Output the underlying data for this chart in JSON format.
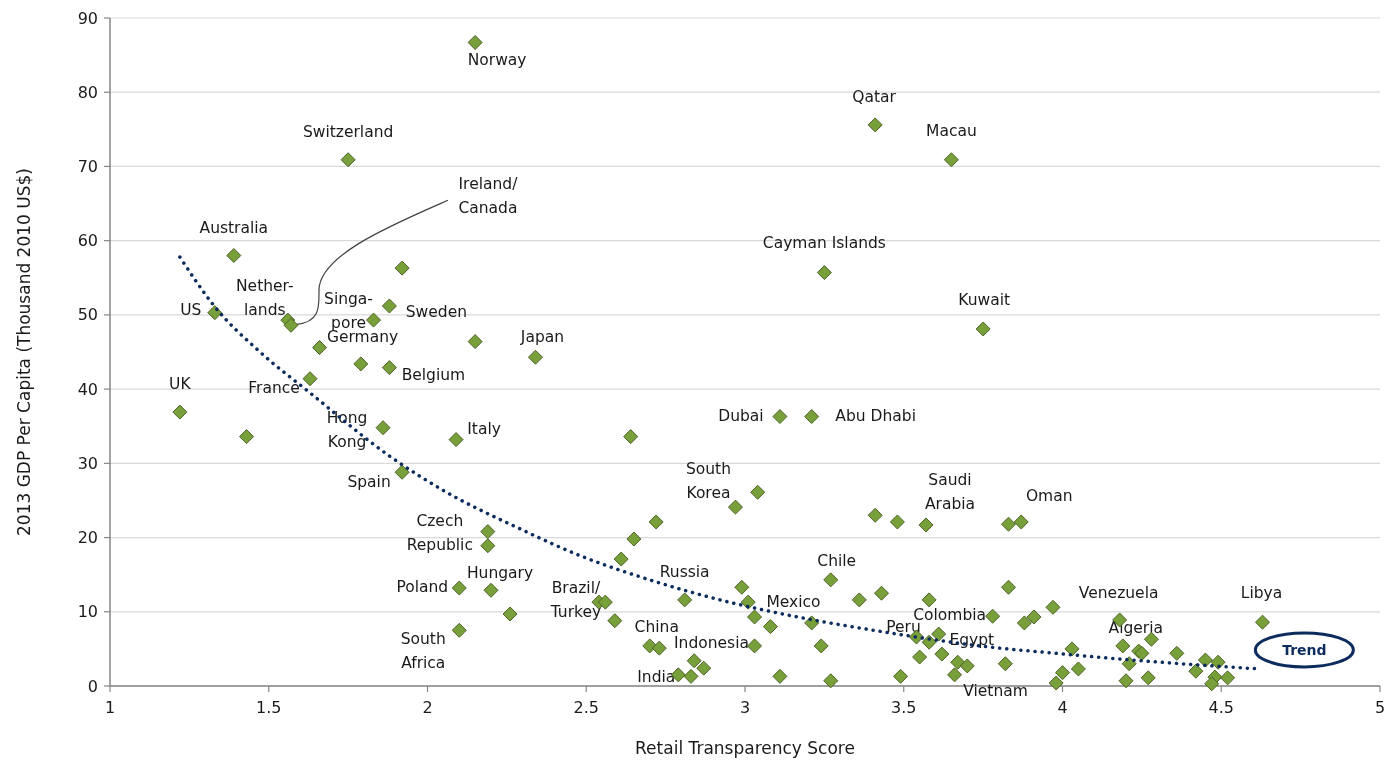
{
  "chart_data": {
    "type": "scatter",
    "xlabel": "Retail Transparency Score",
    "ylabel": "2013 GDP Per Capita (Thousand 2010 US$)",
    "xlim": [
      1,
      5
    ],
    "xticks": [
      1,
      1.5,
      2,
      2.5,
      3,
      3.5,
      4,
      4.5,
      5
    ],
    "ylim": [
      0,
      90
    ],
    "yticks": [
      0,
      10,
      20,
      30,
      40,
      50,
      60,
      70,
      80,
      90
    ],
    "grid": "y",
    "legend": false,
    "series": [
      {
        "color": "#77a03a",
        "marker": "diamond",
        "x": [
          1.22,
          1.43,
          1.33,
          1.39,
          1.56,
          1.57,
          1.63,
          1.66,
          1.75,
          1.79,
          1.83,
          1.88,
          1.92,
          1.88,
          1.86,
          1.92,
          2.09,
          2.15,
          2.15,
          2.34,
          2.19,
          2.19,
          2.1,
          2.2,
          2.26,
          2.1,
          2.54,
          2.56,
          2.59,
          2.61,
          2.65,
          2.72,
          2.64,
          2.7,
          2.73,
          2.81,
          2.79,
          2.83,
          2.84,
          2.87,
          2.97,
          3.04,
          2.99,
          3.01,
          3.03,
          3.08,
          3.03,
          3.11,
          3.21,
          3.11,
          3.27,
          3.21,
          3.24,
          3.27,
          3.36,
          3.43,
          3.41,
          3.48,
          3.57,
          3.49,
          3.58,
          3.54,
          3.55,
          3.58,
          3.61,
          3.62,
          3.67,
          3.7,
          3.66,
          3.83,
          3.87,
          3.83,
          3.78,
          3.82,
          3.88,
          3.91,
          3.97,
          3.98,
          4.0,
          3.75,
          3.41,
          3.65,
          3.25,
          4.63,
          4.18,
          4.19,
          4.28,
          4.24,
          4.25,
          4.21,
          4.2,
          4.27,
          4.03,
          4.05,
          4.36,
          4.42,
          4.45,
          4.49,
          4.48,
          4.47,
          4.52
        ],
        "values": [
          36.9,
          33.6,
          50.3,
          58.0,
          49.3,
          48.6,
          41.4,
          45.6,
          70.9,
          43.4,
          49.3,
          51.2,
          56.3,
          42.9,
          34.8,
          28.8,
          33.2,
          46.4,
          86.7,
          44.3,
          20.8,
          18.9,
          13.2,
          12.9,
          9.7,
          7.5,
          11.3,
          11.3,
          8.8,
          17.1,
          19.8,
          22.1,
          33.6,
          5.4,
          5.1,
          11.6,
          1.5,
          1.3,
          3.4,
          2.4,
          24.1,
          26.1,
          13.3,
          11.3,
          9.3,
          8.0,
          5.4,
          36.3,
          36.3,
          1.3,
          14.3,
          8.5,
          5.4,
          0.7,
          11.6,
          12.5,
          23.0,
          22.1,
          21.7,
          1.3,
          11.6,
          6.6,
          3.9,
          5.9,
          7.0,
          4.3,
          3.2,
          2.7,
          1.5,
          21.8,
          22.1,
          13.3,
          9.4,
          3.0,
          8.5,
          9.3,
          10.6,
          0.4,
          1.8,
          48.1,
          75.6,
          70.9,
          55.7,
          8.6,
          8.9,
          5.4,
          6.3,
          4.7,
          4.4,
          3.0,
          0.7,
          1.1,
          5.0,
          2.3,
          4.4,
          2.0,
          3.5,
          3.2,
          1.2,
          0.3,
          1.1
        ]
      },
      {
        "type": "line",
        "name": "Trend",
        "color": "#0d2c5e",
        "line_style": "dotted",
        "marker": "none",
        "x": [
          1.22,
          1.33,
          1.47,
          1.63,
          1.88,
          2.06,
          2.28,
          2.49,
          2.7,
          2.95,
          3.13,
          3.42,
          3.76,
          3.98,
          4.22,
          4.62
        ],
        "values": [
          57.8,
          51.1,
          45.1,
          39.5,
          31.0,
          26.1,
          21.4,
          17.4,
          14.3,
          11.3,
          9.6,
          7.4,
          5.3,
          4.4,
          3.5,
          2.3
        ]
      }
    ],
    "annotations": [
      {
        "text": "Norway",
        "x": 2.15,
        "y": 86.7
      },
      {
        "text": "Switzerland",
        "x": 1.75,
        "y": 70.9
      },
      {
        "text": "Australia",
        "x": 1.39,
        "y": 58.0
      },
      {
        "text": "US",
        "x": 1.33,
        "y": 50.3
      },
      {
        "text": "Nether-\nlands",
        "x": 1.56,
        "y": 49.3
      },
      {
        "text": "Ireland/\nCanada",
        "x": 1.57,
        "y": 48.6
      },
      {
        "text": "Singa-\npore",
        "x": 1.83,
        "y": 49.3
      },
      {
        "text": "Sweden",
        "x": 1.88,
        "y": 51.2
      },
      {
        "text": "Germany",
        "x": 1.66,
        "y": 45.6
      },
      {
        "text": "Belgium",
        "x": 1.88,
        "y": 42.9
      },
      {
        "text": "UK",
        "x": 1.22,
        "y": 36.9
      },
      {
        "text": "France",
        "x": 1.63,
        "y": 41.4
      },
      {
        "text": "Hong\nKong",
        "x": 1.86,
        "y": 34.8
      },
      {
        "text": "Italy",
        "x": 2.09,
        "y": 33.2
      },
      {
        "text": "Japan",
        "x": 2.34,
        "y": 44.3
      },
      {
        "text": "Spain",
        "x": 1.92,
        "y": 28.8
      },
      {
        "text": "Czech\nRepublic",
        "x": 2.19,
        "y": 18.9
      },
      {
        "text": "Poland",
        "x": 2.1,
        "y": 13.2
      },
      {
        "text": "Hungary",
        "x": 2.2,
        "y": 12.9
      },
      {
        "text": "South\nAfrica",
        "x": 2.1,
        "y": 7.5
      },
      {
        "text": "Brazil/\nTurkey",
        "x": 2.54,
        "y": 11.3
      },
      {
        "text": "China",
        "x": 2.7,
        "y": 5.4
      },
      {
        "text": "Indonesia",
        "x": 3.03,
        "y": 5.4
      },
      {
        "text": "India",
        "x": 2.79,
        "y": 1.5
      },
      {
        "text": "Russia",
        "x": 2.81,
        "y": 11.6
      },
      {
        "text": "South\nKorea",
        "x": 2.97,
        "y": 24.1
      },
      {
        "text": "Mexico",
        "x": 3.03,
        "y": 9.3
      },
      {
        "text": "Dubai",
        "x": 3.11,
        "y": 36.3
      },
      {
        "text": "Abu Dhabi",
        "x": 3.21,
        "y": 36.3
      },
      {
        "text": "Chile",
        "x": 3.27,
        "y": 14.3
      },
      {
        "text": "Cayman Islands",
        "x": 3.25,
        "y": 55.7
      },
      {
        "text": "Qatar",
        "x": 3.41,
        "y": 75.6
      },
      {
        "text": "Macau",
        "x": 3.65,
        "y": 70.9
      },
      {
        "text": "Kuwait",
        "x": 3.75,
        "y": 48.1
      },
      {
        "text": "Saudi\nArabia",
        "x": 3.57,
        "y": 21.7
      },
      {
        "text": "Oman",
        "x": 3.87,
        "y": 22.1
      },
      {
        "text": "Peru",
        "x": 3.54,
        "y": 6.6
      },
      {
        "text": "Colombia",
        "x": 3.61,
        "y": 7.0
      },
      {
        "text": "Egypt",
        "x": 3.62,
        "y": 4.3
      },
      {
        "text": "Vietnam",
        "x": 3.66,
        "y": 1.5
      },
      {
        "text": "Venezuela",
        "x": 4.18,
        "y": 8.9
      },
      {
        "text": "Algeria",
        "x": 4.19,
        "y": 5.4
      },
      {
        "text": "Libya",
        "x": 4.63,
        "y": 8.6
      }
    ]
  }
}
